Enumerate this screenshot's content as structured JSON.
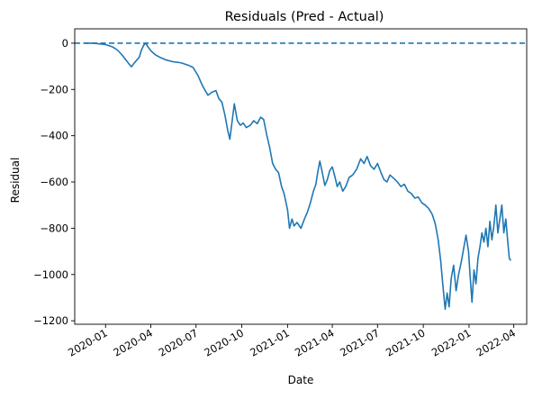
{
  "chart_data": {
    "type": "line",
    "title": "Residuals (Pred - Actual)",
    "xlabel": "Date",
    "ylabel": "Residual",
    "x_range": [
      "2019-10-31",
      "2022-04-27"
    ],
    "y_range": [
      -1215,
      62
    ],
    "x_ticks": [
      {
        "date": "2020-01-01",
        "label": "2020-01"
      },
      {
        "date": "2020-04-01",
        "label": "2020-04"
      },
      {
        "date": "2020-07-01",
        "label": "2020-07"
      },
      {
        "date": "2020-10-01",
        "label": "2020-10"
      },
      {
        "date": "2021-01-01",
        "label": "2021-01"
      },
      {
        "date": "2021-04-01",
        "label": "2021-04"
      },
      {
        "date": "2021-07-01",
        "label": "2021-07"
      },
      {
        "date": "2021-10-01",
        "label": "2021-10"
      },
      {
        "date": "2022-01-01",
        "label": "2022-01"
      },
      {
        "date": "2022-04-01",
        "label": "2022-04"
      }
    ],
    "y_ticks": [
      {
        "value": 0,
        "label": "0"
      },
      {
        "value": -200,
        "label": "−200"
      },
      {
        "value": -400,
        "label": "−400"
      },
      {
        "value": -600,
        "label": "−600"
      },
      {
        "value": -800,
        "label": "−800"
      },
      {
        "value": -1000,
        "label": "−1000"
      },
      {
        "value": -1200,
        "label": "−1200"
      }
    ],
    "grid": false,
    "reference_line": {
      "value": 0,
      "style": "dashed",
      "color": "#1f77b4"
    },
    "series": [
      {
        "color": "#1f77b4",
        "points": [
          [
            "2019-11-20",
            0
          ],
          [
            "2019-11-28",
            0
          ],
          [
            "2019-12-06",
            0
          ],
          [
            "2019-12-16",
            -2
          ],
          [
            "2020-01-01",
            -6
          ],
          [
            "2020-01-15",
            -16
          ],
          [
            "2020-01-25",
            -30
          ],
          [
            "2020-02-02",
            -48
          ],
          [
            "2020-02-10",
            -70
          ],
          [
            "2020-02-18",
            -92
          ],
          [
            "2020-02-22",
            -102
          ],
          [
            "2020-02-27",
            -88
          ],
          [
            "2020-03-03",
            -75
          ],
          [
            "2020-03-09",
            -60
          ],
          [
            "2020-03-13",
            -30
          ],
          [
            "2020-03-18",
            -8
          ],
          [
            "2020-03-22",
            0
          ],
          [
            "2020-03-27",
            -18
          ],
          [
            "2020-04-02",
            -35
          ],
          [
            "2020-04-10",
            -50
          ],
          [
            "2020-04-20",
            -62
          ],
          [
            "2020-05-01",
            -72
          ],
          [
            "2020-05-15",
            -80
          ],
          [
            "2020-06-01",
            -85
          ],
          [
            "2020-06-15",
            -95
          ],
          [
            "2020-06-25",
            -105
          ],
          [
            "2020-07-05",
            -140
          ],
          [
            "2020-07-12",
            -175
          ],
          [
            "2020-07-18",
            -200
          ],
          [
            "2020-07-25",
            -225
          ],
          [
            "2020-08-02",
            -212
          ],
          [
            "2020-08-10",
            -205
          ],
          [
            "2020-08-16",
            -240
          ],
          [
            "2020-08-22",
            -255
          ],
          [
            "2020-08-28",
            -310
          ],
          [
            "2020-09-03",
            -380
          ],
          [
            "2020-09-07",
            -415
          ],
          [
            "2020-09-12",
            -330
          ],
          [
            "2020-09-16",
            -262
          ],
          [
            "2020-09-22",
            -335
          ],
          [
            "2020-09-28",
            -355
          ],
          [
            "2020-10-04",
            -345
          ],
          [
            "2020-10-10",
            -365
          ],
          [
            "2020-10-18",
            -355
          ],
          [
            "2020-10-25",
            -335
          ],
          [
            "2020-11-01",
            -348
          ],
          [
            "2020-11-08",
            -320
          ],
          [
            "2020-11-14",
            -330
          ],
          [
            "2020-11-20",
            -395
          ],
          [
            "2020-11-26",
            -450
          ],
          [
            "2020-12-02",
            -520
          ],
          [
            "2020-12-08",
            -545
          ],
          [
            "2020-12-14",
            -560
          ],
          [
            "2020-12-20",
            -620
          ],
          [
            "2020-12-25",
            -650
          ],
          [
            "2021-01-01",
            -720
          ],
          [
            "2021-01-05",
            -800
          ],
          [
            "2021-01-10",
            -760
          ],
          [
            "2021-01-14",
            -790
          ],
          [
            "2021-01-20",
            -775
          ],
          [
            "2021-01-28",
            -800
          ],
          [
            "2021-02-04",
            -760
          ],
          [
            "2021-02-10",
            -730
          ],
          [
            "2021-02-16",
            -690
          ],
          [
            "2021-02-22",
            -640
          ],
          [
            "2021-02-27",
            -610
          ],
          [
            "2021-03-03",
            -555
          ],
          [
            "2021-03-07",
            -510
          ],
          [
            "2021-03-12",
            -560
          ],
          [
            "2021-03-17",
            -615
          ],
          [
            "2021-03-22",
            -590
          ],
          [
            "2021-03-27",
            -550
          ],
          [
            "2021-04-01",
            -535
          ],
          [
            "2021-04-06",
            -575
          ],
          [
            "2021-04-11",
            -620
          ],
          [
            "2021-04-16",
            -600
          ],
          [
            "2021-04-22",
            -640
          ],
          [
            "2021-04-28",
            -620
          ],
          [
            "2021-05-05",
            -580
          ],
          [
            "2021-05-12",
            -570
          ],
          [
            "2021-05-20",
            -545
          ],
          [
            "2021-05-28",
            -500
          ],
          [
            "2021-06-04",
            -520
          ],
          [
            "2021-06-10",
            -490
          ],
          [
            "2021-06-17",
            -530
          ],
          [
            "2021-06-24",
            -545
          ],
          [
            "2021-07-01",
            -520
          ],
          [
            "2021-07-08",
            -560
          ],
          [
            "2021-07-14",
            -590
          ],
          [
            "2021-07-20",
            -600
          ],
          [
            "2021-07-26",
            -570
          ],
          [
            "2021-08-03",
            -585
          ],
          [
            "2021-08-10",
            -600
          ],
          [
            "2021-08-17",
            -620
          ],
          [
            "2021-08-24",
            -610
          ],
          [
            "2021-08-31",
            -640
          ],
          [
            "2021-09-07",
            -650
          ],
          [
            "2021-09-14",
            -670
          ],
          [
            "2021-09-21",
            -665
          ],
          [
            "2021-09-28",
            -690
          ],
          [
            "2021-10-05",
            -700
          ],
          [
            "2021-10-12",
            -715
          ],
          [
            "2021-10-19",
            -740
          ],
          [
            "2021-10-25",
            -780
          ],
          [
            "2021-10-31",
            -850
          ],
          [
            "2021-11-05",
            -940
          ],
          [
            "2021-11-10",
            -1060
          ],
          [
            "2021-11-14",
            -1150
          ],
          [
            "2021-11-18",
            -1080
          ],
          [
            "2021-11-22",
            -1140
          ],
          [
            "2021-11-26",
            -1020
          ],
          [
            "2021-12-01",
            -960
          ],
          [
            "2021-12-06",
            -1070
          ],
          [
            "2021-12-11",
            -1000
          ],
          [
            "2021-12-16",
            -950
          ],
          [
            "2021-12-21",
            -890
          ],
          [
            "2021-12-26",
            -830
          ],
          [
            "2021-12-31",
            -900
          ],
          [
            "2022-01-03",
            -1000
          ],
          [
            "2022-01-07",
            -1120
          ],
          [
            "2022-01-11",
            -980
          ],
          [
            "2022-01-15",
            -1040
          ],
          [
            "2022-01-19",
            -930
          ],
          [
            "2022-01-23",
            -880
          ],
          [
            "2022-01-27",
            -820
          ],
          [
            "2022-01-31",
            -860
          ],
          [
            "2022-02-04",
            -800
          ],
          [
            "2022-02-08",
            -880
          ],
          [
            "2022-02-12",
            -770
          ],
          [
            "2022-02-16",
            -850
          ],
          [
            "2022-02-20",
            -790
          ],
          [
            "2022-02-24",
            -700
          ],
          [
            "2022-02-28",
            -820
          ],
          [
            "2022-03-04",
            -760
          ],
          [
            "2022-03-08",
            -700
          ],
          [
            "2022-03-12",
            -820
          ],
          [
            "2022-03-16",
            -760
          ],
          [
            "2022-03-20",
            -860
          ],
          [
            "2022-03-23",
            -930
          ],
          [
            "2022-03-26",
            -940
          ]
        ]
      }
    ]
  }
}
